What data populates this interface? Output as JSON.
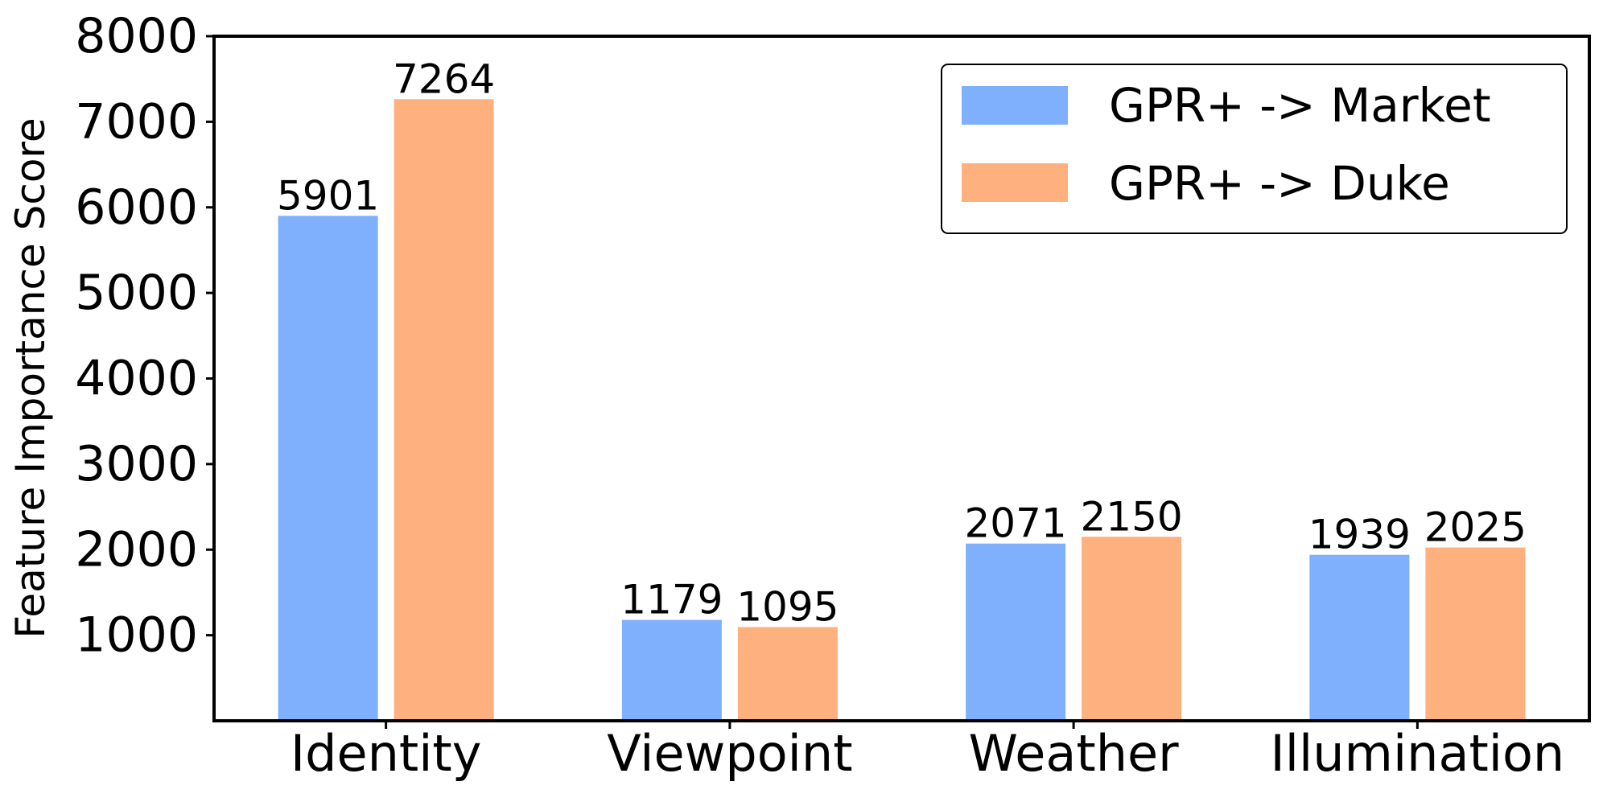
{
  "chart_data": {
    "type": "bar",
    "categories": [
      "Identity",
      "Viewpoint",
      "Weather",
      "Illumination"
    ],
    "series": [
      {
        "name": "GPR+ -> Market",
        "values": [
          5901,
          1179,
          2071,
          1939
        ],
        "color": "#7fb0fd"
      },
      {
        "name": "GPR+ -> Duke",
        "values": [
          7264,
          1095,
          2150,
          2025
        ],
        "color": "#feb07f"
      }
    ],
    "xlabel": "",
    "ylabel": "Feature Importance Score",
    "ylim": [
      0,
      8000
    ],
    "yticks": [
      1000,
      2000,
      3000,
      4000,
      5000,
      6000,
      7000,
      8000
    ],
    "ytick_labels": [
      "1000",
      "2000",
      "3000",
      "4000",
      "5000",
      "6000",
      "7000",
      "8000"
    ],
    "data_labels": true,
    "grid": false,
    "legend_position": "top-right"
  }
}
